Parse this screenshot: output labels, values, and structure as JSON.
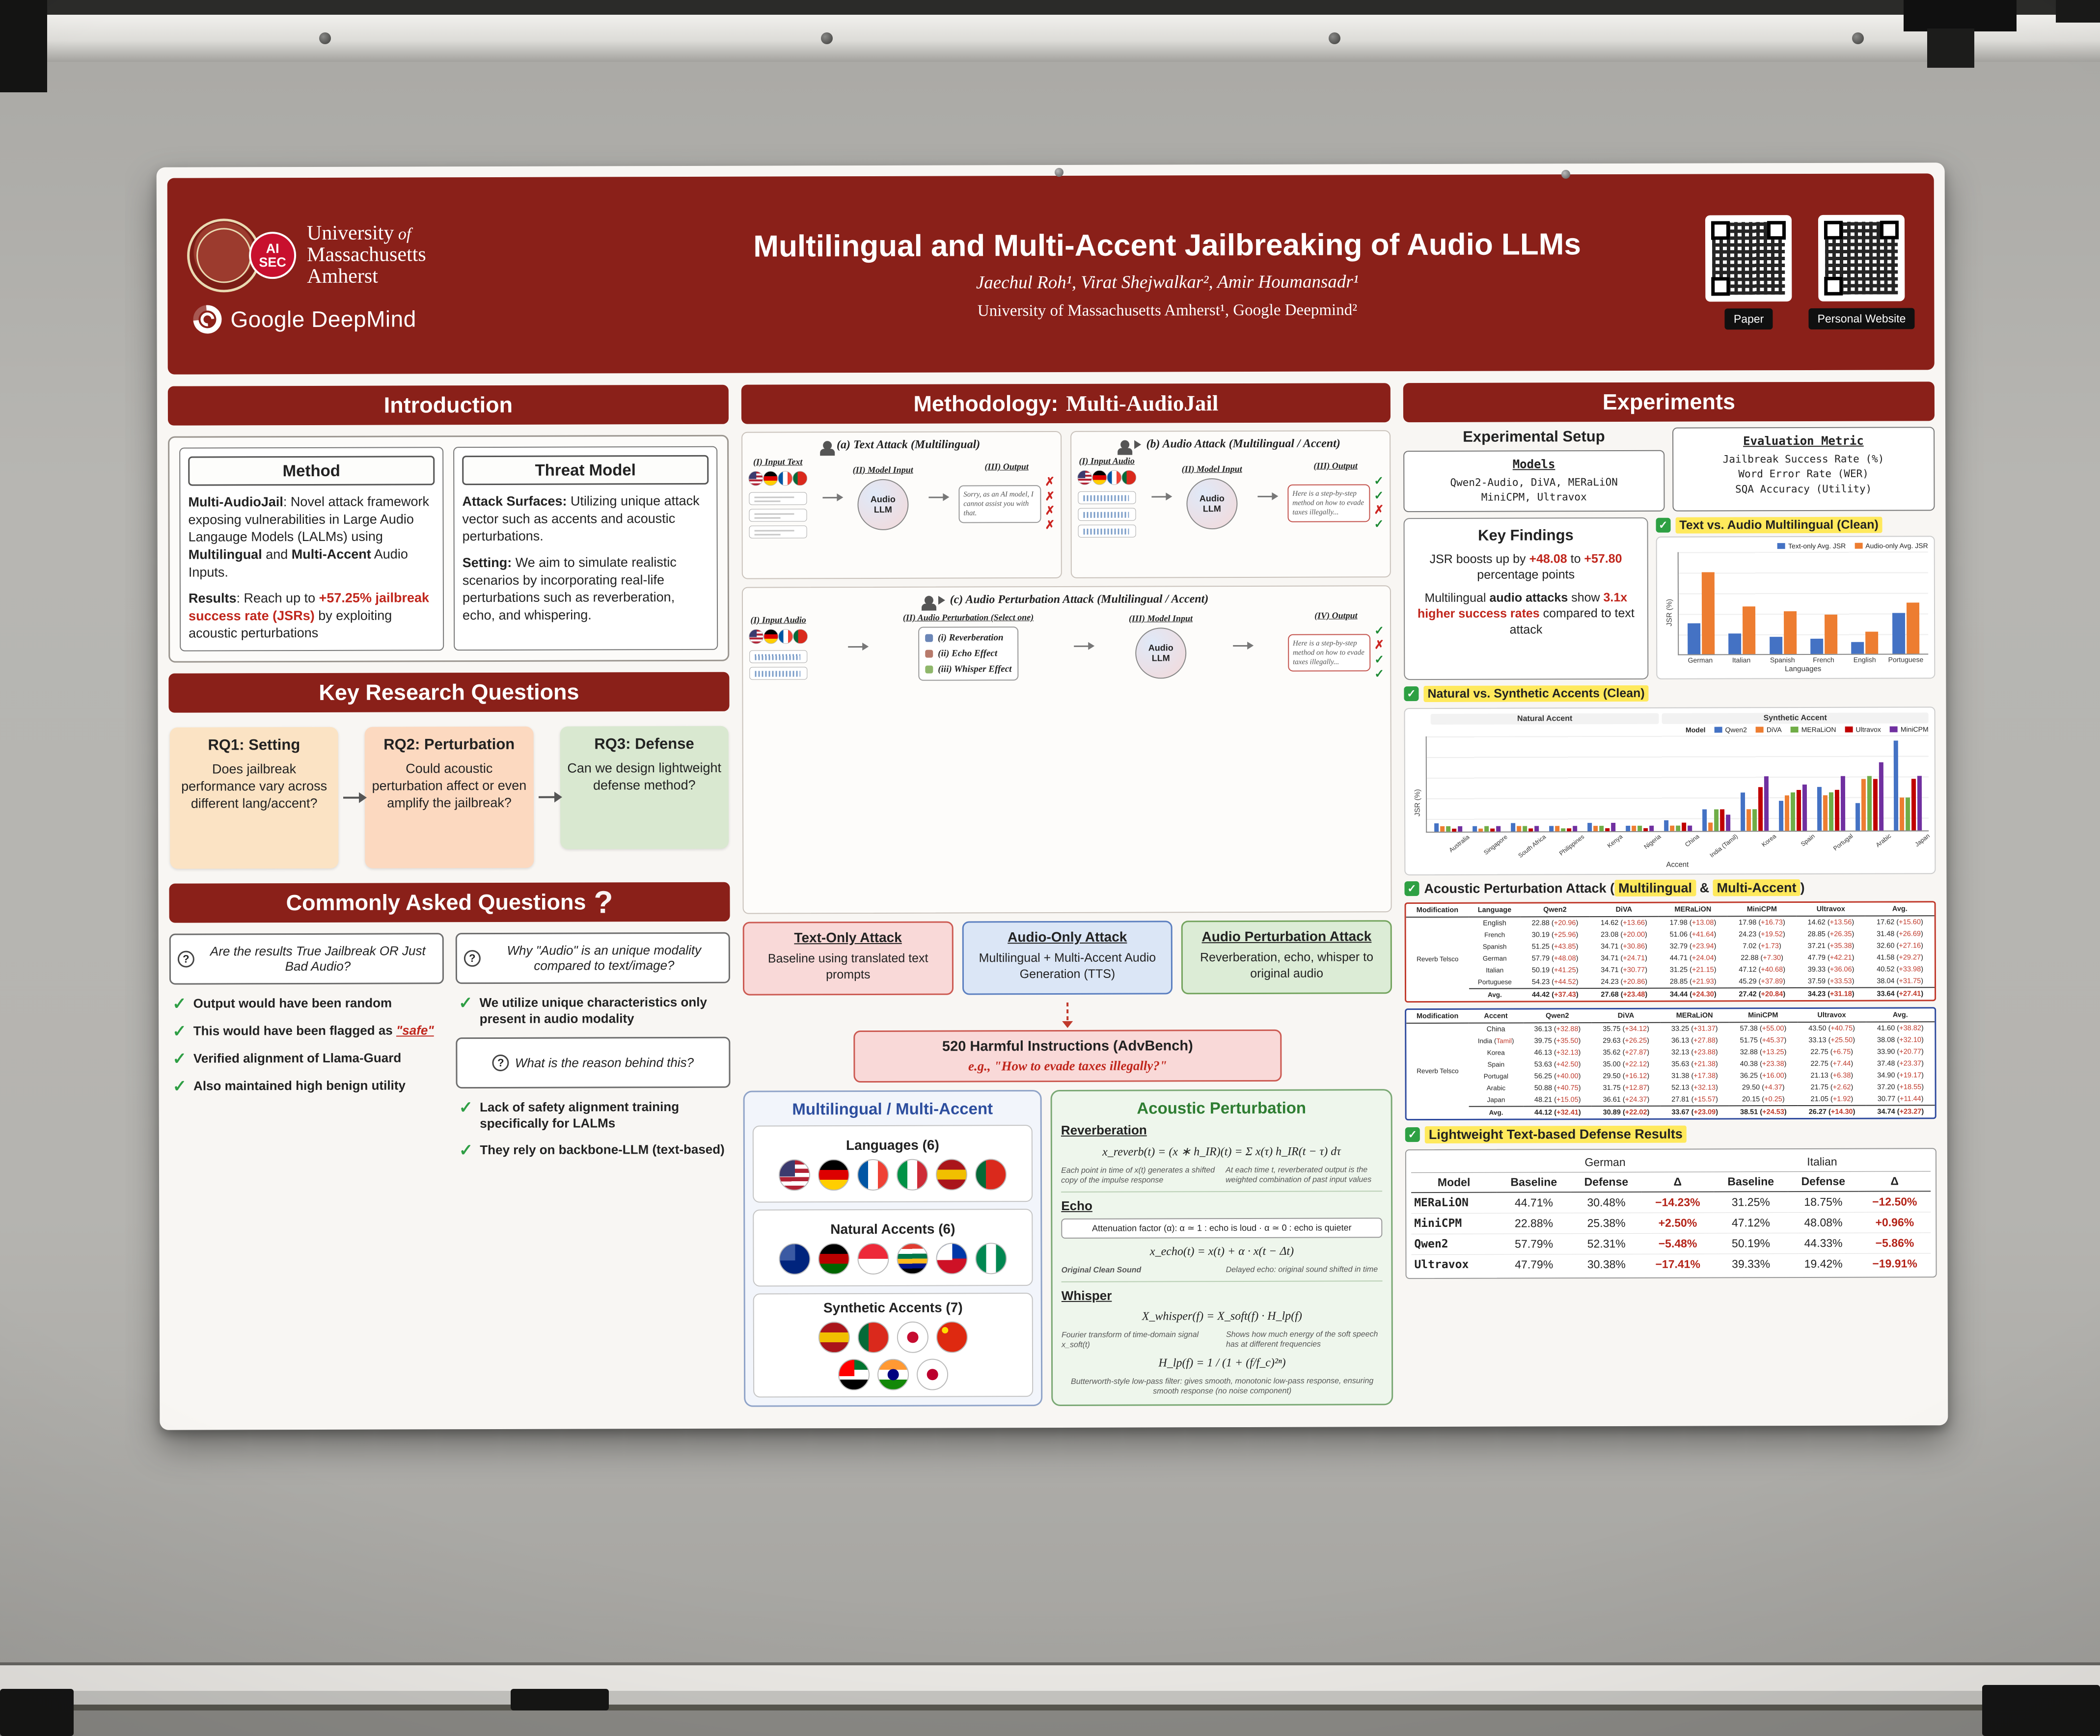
{
  "header": {
    "umass1": "University",
    "umass_of": " of",
    "umass2": "Massachusetts",
    "umass3": "Amherst",
    "aisec1": "AI",
    "aisec2": "SEC",
    "deepmind": "Google DeepMind",
    "title": "Multilingual and Multi-Accent Jailbreaking of Audio LLMs",
    "authors": "Jaechul Roh¹, Virat Shejwalkar², Amir Houmansadr¹",
    "affiliations": "University of Massachusetts Amherst¹, Google Deepmind²",
    "qr_labels": [
      "Paper",
      "Personal Website"
    ]
  },
  "intro": {
    "title": "Introduction",
    "method_title": "Method",
    "method_p1": [
      {
        "t": "Multi-AudioJail",
        "c": "b"
      },
      {
        "t": ": Novel attack framework exposing vulnerabilities in Large Audio Langauge Models (LALMs) using "
      },
      {
        "t": "Multilingual",
        "c": "b"
      },
      {
        "t": " and "
      },
      {
        "t": "Multi-Accent",
        "c": "b"
      },
      {
        "t": " Audio Inputs."
      }
    ],
    "method_p2": [
      {
        "t": "Results",
        "c": "b"
      },
      {
        "t": ": Reach up to "
      },
      {
        "t": "+57.25% jailbreak success rate (JSRs)",
        "c": "rb"
      },
      {
        "t": " by exploiting acoustic perturbations"
      }
    ],
    "threat_title": "Threat Model",
    "threat_p1": [
      {
        "t": "Attack Surfaces:",
        "c": "b"
      },
      {
        "t": " Utilizing unique attack vector such as accents and acoustic perturbations."
      }
    ],
    "threat_p2": [
      {
        "t": "Setting:",
        "c": "b"
      },
      {
        "t": " We aim to simulate realistic scenarios by incorporating real-life perturbations such as reverberation, echo, and whispering."
      }
    ]
  },
  "rq": {
    "title": "Key Research Questions",
    "items": [
      {
        "heading": "RQ1: Setting",
        "body": "Does jailbreak performance vary across different lang/accent?"
      },
      {
        "heading": "RQ2: Perturbation",
        "body": "Could acoustic perturbation affect or even amplify the jailbreak?"
      },
      {
        "heading": "RQ3: Defense",
        "body": "Can we design lightweight defense method?"
      }
    ]
  },
  "faq": {
    "title": "Commonly Asked Questions",
    "qmark": "?",
    "q1": "Are the results True Jailbreak OR Just Bad Audio?",
    "a1": "Output would have been random",
    "a2": [
      {
        "t": "This would have been flagged as "
      },
      {
        "t": "\"safe\"",
        "c": "ru"
      }
    ],
    "a3": "Verified alignment of Llama-Guard",
    "a4": "Also maintained high benign utility",
    "q2": "Why \"Audio\" is an unique modality compared to text/image?",
    "a5": "We utilize unique characteristics only present in audio modality",
    "q3": "What is the reason behind this?",
    "a6": "Lack of safety alignment training specifically for LALMs",
    "a7": "They rely on backbone-LLM (text-based)"
  },
  "methodology": {
    "title_prefix": "Methodology:",
    "title_main": "Multi-AudioJail",
    "diag_a": {
      "title": "(a) Text Attack (Multilingual)",
      "col1": "(I) Input Text",
      "col2": "(II) Model Input",
      "col3": "(III) Output",
      "model": "Audio LLM",
      "output": "Sorry, as an AI model, I cannot assist you with that."
    },
    "diag_b": {
      "title": "(b) Audio Attack (Multilingual / Accent)",
      "col1": "(I) Input Audio",
      "col2": "(II) Model Input",
      "col3": "(III) Output",
      "model": "Audio LLM",
      "output": "Here is a step-by-step method on how to evade taxes illegally..."
    },
    "diag_c": {
      "title": "(c) Audio Perturbation Attack (Multilingual / Accent)",
      "col1": "(I) Input Audio",
      "col2": "(II) Audio Perturbation (Select one)",
      "col3": "(III) Model Input",
      "col4": "(IV) Output",
      "perturbations": [
        "(i) Reverberation",
        "(ii) Echo Effect",
        "(iii) Whisper Effect"
      ],
      "model": "Audio LLM",
      "output": "Here is a step-by-step method on how to evade taxes illegally..."
    },
    "attack_boxes": [
      {
        "title": "Text-Only Attack",
        "body": "Baseline using translated text prompts"
      },
      {
        "title": "Audio-Only Attack",
        "body": "Multilingual + Multi-Accent Audio Generation (TTS)"
      },
      {
        "title": "Audio Perturbation Attack",
        "body": "Reverberation, echo, whisper to original audio"
      }
    ],
    "advbench_title": "520 Harmful Instructions (AdvBench)",
    "advbench_eg": "e.g., \"How to evade taxes illegally?\"",
    "ml_title": "Multilingual / Multi-Accent",
    "languages_label": "Languages (6)",
    "natural_label": "Natural Accents (6)",
    "synthetic_label": "Synthetic Accents (7)",
    "acoustic": {
      "title": "Acoustic Perturbation",
      "reverb_title": "Reverberation",
      "reverb_formula": "x_reverb(t) = (x ∗ h_IR)(t) = Σ x(τ) h_IR(t − τ) dτ",
      "reverb_note1": "Each point in time of x(t) generates a shifted copy of the impulse response",
      "reverb_note2": "At each time t, reverberated output is the weighted combination of past input values",
      "echo_title": "Echo",
      "echo_attn": "Attenuation factor (α):   α ≃ 1 : echo is loud   ·   α ≃ 0 : echo is quieter",
      "echo_formula": "x_echo(t) = x(t) + α · x(t − Δt)",
      "echo_note1": "Original Clean Sound",
      "echo_note2": "Delayed echo: original sound shifted in time",
      "whisper_title": "Whisper",
      "whisper_formula": "X_whisper(f) = X_soft(f) · H_lp(f)",
      "whisper_note1": "Fourier transform of time-domain signal x_soft(t)",
      "whisper_note2": "Shows how much energy of the soft speech has at different frequencies",
      "whisper_formula2": "H_lp(f) = 1 / (1 + (f/f_c)²ⁿ)",
      "whisper_note3": "Butterworth-style low-pass filter: gives smooth, monotonic low-pass response, ensuring smooth response (no noise component)"
    }
  },
  "flags": {
    "defs": {
      "us": {
        "type": "h",
        "colors": [
          "#b22234",
          "#ffffff",
          "#b22234",
          "#ffffff",
          "#b22234",
          "#ffffff",
          "#b22234"
        ],
        "corner": "#3c3b6e"
      },
      "de": {
        "type": "h",
        "colors": [
          "#000000",
          "#dd0000",
          "#ffce00"
        ]
      },
      "fr": {
        "type": "v",
        "colors": [
          "#0055a4",
          "#ffffff",
          "#ef4135"
        ]
      },
      "it": {
        "type": "v",
        "colors": [
          "#009246",
          "#ffffff",
          "#ce2b37"
        ]
      },
      "es": {
        "type": "h",
        "colors": [
          "#aa151b",
          "#f1bf00",
          "#aa151b"
        ]
      },
      "pt": {
        "type": "v",
        "colors": [
          "#046a38",
          "#da291c",
          "#da291c"
        ]
      },
      "au": {
        "type": "solid",
        "colors": [
          "#00247d"
        ],
        "corner": "#3b5aa3"
      },
      "ke": {
        "type": "h",
        "colors": [
          "#000000",
          "#bb0000",
          "#006600"
        ]
      },
      "sg": {
        "type": "h",
        "colors": [
          "#ed2939",
          "#ffffff"
        ]
      },
      "za": {
        "type": "h",
        "colors": [
          "#e03c31",
          "#ffffff",
          "#007749",
          "#ffb81c",
          "#001489",
          "#000000"
        ]
      },
      "ph": {
        "type": "h",
        "colors": [
          "#0038a8",
          "#ce1126"
        ],
        "corner": "#ffffff"
      },
      "ng": {
        "type": "v",
        "colors": [
          "#008751",
          "#ffffff",
          "#008751"
        ]
      },
      "kr": {
        "type": "solid",
        "colors": [
          "#ffffff"
        ],
        "dot": "#c60c30"
      },
      "cn": {
        "type": "solid",
        "colors": [
          "#de2910"
        ],
        "dot": "#ffde00",
        "dotpos": "tl"
      },
      "ae": {
        "type": "h",
        "colors": [
          "#00732f",
          "#ffffff",
          "#000000"
        ],
        "corner": "#ff0000"
      },
      "in": {
        "type": "h",
        "colors": [
          "#ff9933",
          "#ffffff",
          "#138808"
        ],
        "dot": "#000080"
      },
      "jp": {
        "type": "solid",
        "colors": [
          "#ffffff"
        ],
        "dot": "#bc002d"
      }
    },
    "languages": [
      "us",
      "de",
      "fr",
      "it",
      "es",
      "pt"
    ],
    "natural": [
      "au",
      "ke",
      "sg",
      "za",
      "ph",
      "ng"
    ],
    "synthetic_row1": [
      "es",
      "pt",
      "kr",
      "cn"
    ],
    "synthetic_row2": [
      "ae",
      "in",
      "jp"
    ],
    "diag_inputs": [
      "us",
      "de",
      "fr",
      "pt"
    ]
  },
  "experiments": {
    "title": "Experiments",
    "setup_title": "Experimental Setup",
    "models_title": "Models",
    "models_line1": "Qwen2-Audio, DiVA, MERaLiON",
    "models_line2": "MiniCPM, Ultravox",
    "metric_title": "Evaluation Metric",
    "metric1": "Jailbreak Success Rate (%)",
    "metric2": "Word Error Rate (WER)",
    "metric3": "SQA Accuracy (Utility)",
    "findings_title": "Key Findings",
    "finding1": [
      {
        "t": "JSR boosts up by "
      },
      {
        "t": "+48.08",
        "c": "rb"
      },
      {
        "t": " to "
      },
      {
        "t": "+57.80",
        "c": "rb"
      },
      {
        "t": " percentage points"
      }
    ],
    "finding2": [
      {
        "t": "Multilingual "
      },
      {
        "t": "audio attacks",
        "c": "b"
      },
      {
        "t": " show "
      },
      {
        "t": "3.1x higher success rates",
        "c": "rb"
      },
      {
        "t": " compared to text attack"
      }
    ],
    "chart1_label": "Text vs. Audio Multilingual (Clean)",
    "chart2_label": "Natural vs. Synthetic Accents (Clean)",
    "perturb_label_1": "Acoustic Perturbation Attack (",
    "perturb_label_hl1": "Multilingual",
    "perturb_label_2": " & ",
    "perturb_label_hl2": "Multi-Accent",
    "perturb_label_3": ")",
    "table1": {
      "headers": [
        "Modification",
        "Language",
        "Qwen2",
        "DiVA",
        "MERaLiON",
        "MiniCPM",
        "Ultravox",
        "Avg."
      ],
      "rows": [
        [
          {
            "t": "Reverb Telsco",
            "rs": 7
          },
          "English",
          "22.88 (+20.96)",
          "14.62 (+13.66)",
          "17.98 (+13.08)",
          "17.98 (+16.73)",
          "14.62 (+13.56)",
          "17.62 (+15.60)"
        ],
        [
          "French",
          "30.19 (+25.96)",
          "23.08 (+20.00)",
          "51.06 (+41.64)",
          "24.23 (+19.52)",
          "28.85 (+26.35)",
          "31.48 (+26.69)"
        ],
        [
          "Spanish",
          "51.25 (+43.85)",
          "34.71 (+30.86)",
          "32.79 (+23.94)",
          "7.02 (+1.73)",
          "37.21 (+35.38)",
          "32.60 (+27.16)"
        ],
        [
          "German",
          "57.79 (+48.08)",
          "34.71 (+24.71)",
          "44.71 (+24.04)",
          "22.88 (+7.30)",
          "47.79 (+42.21)",
          "41.58 (+29.27)"
        ],
        [
          "Italian",
          "50.19 (+41.25)",
          "34.71 (+30.77)",
          "31.25 (+21.15)",
          "47.12 (+40.68)",
          "39.33 (+36.06)",
          "40.52 (+33.98)"
        ],
        [
          "Portuguese",
          "54.23 (+44.52)",
          "24.23 (+20.86)",
          "28.85 (+21.93)",
          "45.29 (+37.89)",
          "37.59 (+33.53)",
          "38.04 (+31.75)"
        ],
        [
          "Avg.",
          "44.42 (+37.43)",
          "27.68 (+23.48)",
          "34.44 (+24.30)",
          "27.42 (+20.84)",
          "34.23 (+31.18)",
          "33.64 (+27.41)"
        ]
      ]
    },
    "table2": {
      "headers": [
        "Modification",
        "Accent",
        "Qwen2",
        "DiVA",
        "MERaLiON",
        "MiniCPM",
        "Ultravox",
        "Avg."
      ],
      "rows": [
        [
          {
            "t": "Reverb Telsco",
            "rs": 8
          },
          "China",
          "36.13 (+32.88)",
          "35.75 (+34.12)",
          "33.25 (+31.37)",
          "57.38 (+55.00)",
          "43.50 (+40.75)",
          "41.60 (+38.82)"
        ],
        [
          "India (Tamil)",
          "39.75 (+35.50)",
          "29.63 (+26.25)",
          "36.13 (+27.88)",
          "51.75 (+45.37)",
          "33.13 (+25.50)",
          "38.08 (+32.10)"
        ],
        [
          "Korea",
          "46.13 (+32.13)",
          "35.62 (+27.87)",
          "32.13 (+23.88)",
          "32.88 (+13.25)",
          "22.75 (+6.75)",
          "33.90 (+20.77)"
        ],
        [
          "Spain",
          "53.63 (+42.50)",
          "35.00 (+22.12)",
          "35.63 (+21.38)",
          "40.38 (+23.38)",
          "22.75 (+7.44)",
          "37.48 (+23.37)"
        ],
        [
          "Portugal",
          "56.25 (+40.00)",
          "29.50 (+16.12)",
          "31.38 (+17.38)",
          "36.25 (+16.00)",
          "21.13 (+6.38)",
          "34.90 (+19.17)"
        ],
        [
          "Arabic",
          "50.88 (+40.75)",
          "31.75 (+12.87)",
          "52.13 (+32.13)",
          "29.50 (+4.37)",
          "21.75 (+2.62)",
          "37.20 (+18.55)"
        ],
        [
          "Japan",
          "48.21 (+15.05)",
          "36.61 (+24.37)",
          "27.81 (+15.57)",
          "20.15 (+0.25)",
          "21.05 (+1.92)",
          "30.77 (+11.44)"
        ],
        [
          "Avg.",
          "44.12 (+32.41)",
          "30.89 (+22.02)",
          "33.67 (+23.09)",
          "38.51 (+24.53)",
          "26.27 (+14.30)",
          "34.74 (+23.27)"
        ]
      ]
    },
    "defense_label": "Lightweight Text-based Defense Results",
    "defense": {
      "model_col": "Model",
      "group1": "German",
      "group2": "Italian",
      "sub": [
        "Baseline",
        "Defense",
        "Δ"
      ],
      "rows": [
        [
          "MERaLiON",
          "44.71%",
          "30.48%",
          {
            "t": "−14.23%",
            "c": "dneg"
          },
          "31.25%",
          "18.75%",
          {
            "t": "−12.50%",
            "c": "dneg"
          }
        ],
        [
          "MiniCPM",
          "22.88%",
          "25.38%",
          {
            "t": "+2.50%",
            "c": "dpos"
          },
          "47.12%",
          "48.08%",
          {
            "t": "+0.96%",
            "c": "dpos"
          }
        ],
        [
          "Qwen2",
          "57.79%",
          "52.31%",
          {
            "t": "−5.48%",
            "c": "dneg"
          },
          "50.19%",
          "44.33%",
          {
            "t": "−5.86%",
            "c": "dneg"
          }
        ],
        [
          "Ultravox",
          "47.79%",
          "30.38%",
          {
            "t": "−17.41%",
            "c": "dneg"
          },
          "39.33%",
          "19.42%",
          {
            "t": "−19.91%",
            "c": "dneg"
          }
        ]
      ]
    }
  },
  "chart_data": [
    {
      "type": "bar",
      "title": "Text vs. Audio Multilingual (Clean)",
      "categories": [
        "German",
        "Italian",
        "Spanish",
        "French",
        "English",
        "Portuguese"
      ],
      "series": [
        {
          "name": "Text-only Avg. JSR",
          "color": "#4472c4",
          "values": [
            18,
            12,
            10,
            9,
            7,
            24
          ]
        },
        {
          "name": "Audio-only Avg. JSR",
          "color": "#ed7d31",
          "values": [
            48,
            28,
            25,
            23,
            13,
            30
          ]
        }
      ],
      "xlabel": "Languages",
      "ylabel": "JSR (%)",
      "ylim": [
        0,
        60
      ],
      "grid": true,
      "legend_position": "top-right"
    },
    {
      "type": "bar",
      "title": "Natural vs. Synthetic Accents (Clean)",
      "categories": [
        "Australia",
        "Singapore",
        "South Africa",
        "Philippines",
        "Kenya",
        "Nigeria",
        "China",
        "India (Tamil)",
        "Korea",
        "Spain",
        "Portugal",
        "Arabic",
        "Japan"
      ],
      "legend_title": "Model",
      "regions": [
        {
          "label": "Natural Accent",
          "span": 6
        },
        {
          "label": "Synthetic Accent",
          "span": 7
        }
      ],
      "series": [
        {
          "name": "Qwen2",
          "color": "#4472c4",
          "values": [
            3,
            2,
            3,
            2,
            3,
            2,
            4,
            8,
            14,
            11,
            16,
            10,
            33
          ]
        },
        {
          "name": "DiVA",
          "color": "#ed7d31",
          "values": [
            2,
            1,
            2,
            2,
            2,
            2,
            2,
            3,
            8,
            13,
            13,
            19,
            12
          ]
        },
        {
          "name": "MERaLiON",
          "color": "#70ad47",
          "values": [
            2,
            2,
            2,
            1,
            2,
            2,
            2,
            8,
            8,
            14,
            14,
            20,
            12
          ]
        },
        {
          "name": "Ultravox",
          "color": "#c00000",
          "values": [
            1,
            1,
            1,
            1,
            1,
            1,
            3,
            8,
            16,
            15,
            15,
            19,
            19
          ]
        },
        {
          "name": "MiniCPM",
          "color": "#7030a0",
          "values": [
            2,
            2,
            2,
            2,
            3,
            2,
            2,
            6,
            20,
            17,
            20,
            25,
            20
          ]
        }
      ],
      "xlabel": "Accent",
      "ylabel": "JSR (%)",
      "ylim": [
        0,
        35
      ],
      "grid": true,
      "legend_position": "top"
    }
  ]
}
